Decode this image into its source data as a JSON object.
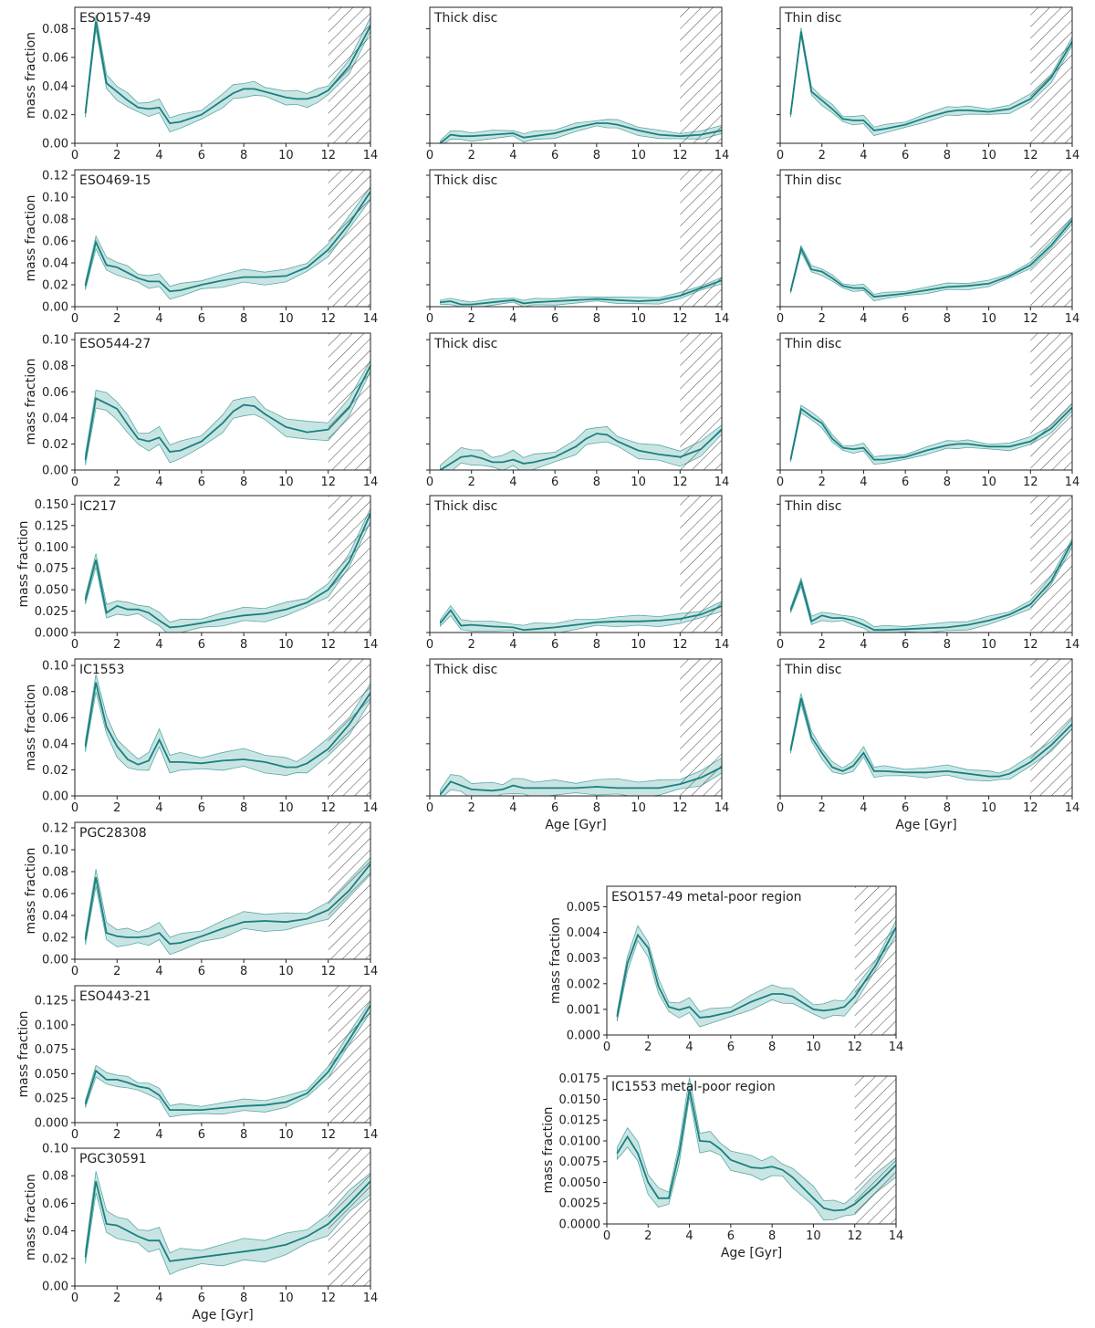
{
  "colors": {
    "line": "#1a8080",
    "band": "#9ccfcc",
    "hatch": "#555555",
    "axis": "#222222"
  },
  "labels": {
    "mass_fraction": "mass fraction",
    "age": "Age [Gyr]"
  },
  "chart_data": [
    {
      "id": "eso157_total",
      "type": "line",
      "title": "ESO157-49",
      "xlim": [
        0,
        14
      ],
      "ylim": [
        0,
        0.095
      ],
      "yticks": [
        0,
        0.02,
        0.04,
        0.06,
        0.08
      ],
      "yfmt": 2,
      "ylabel": "mass fraction",
      "xlabel": "",
      "hatch_from": 12,
      "x": [
        0.5,
        1,
        1.5,
        2,
        2.5,
        3,
        3.5,
        4,
        4.5,
        5,
        6,
        7,
        7.5,
        8,
        8.5,
        9,
        10,
        10.5,
        11,
        11.5,
        12,
        13,
        14
      ],
      "y": [
        0.021,
        0.085,
        0.042,
        0.036,
        0.03,
        0.025,
        0.024,
        0.025,
        0.014,
        0.015,
        0.02,
        0.03,
        0.035,
        0.038,
        0.038,
        0.036,
        0.032,
        0.031,
        0.031,
        0.033,
        0.037,
        0.054,
        0.082
      ],
      "band": 0.005
    },
    {
      "id": "eso157_thick",
      "type": "line",
      "title": "Thick disc",
      "xlim": [
        0,
        14
      ],
      "ylim": [
        0,
        0.095
      ],
      "yticks": [],
      "ylabel": "",
      "xlabel": "",
      "hatch_from": 12,
      "x": [
        0.5,
        1,
        1.5,
        2,
        3,
        4,
        4.5,
        5,
        6,
        7,
        8,
        8.5,
        9,
        10,
        11,
        12,
        13,
        14
      ],
      "y": [
        0.0,
        0.006,
        0.005,
        0.005,
        0.006,
        0.007,
        0.004,
        0.005,
        0.007,
        0.011,
        0.014,
        0.014,
        0.013,
        0.009,
        0.006,
        0.005,
        0.006,
        0.009
      ],
      "band": 0.003
    },
    {
      "id": "eso157_thin",
      "type": "line",
      "title": "Thin disc",
      "xlim": [
        0,
        14
      ],
      "ylim": [
        0,
        0.095
      ],
      "yticks": [],
      "ylabel": "",
      "xlabel": "",
      "hatch_from": 12,
      "x": [
        0.5,
        1,
        1.5,
        2,
        2.5,
        3,
        3.5,
        4,
        4.5,
        5,
        6,
        7,
        8,
        8.5,
        9,
        10,
        11,
        12,
        13,
        14
      ],
      "y": [
        0.02,
        0.078,
        0.036,
        0.03,
        0.024,
        0.017,
        0.016,
        0.016,
        0.009,
        0.01,
        0.013,
        0.018,
        0.022,
        0.023,
        0.023,
        0.022,
        0.024,
        0.031,
        0.046,
        0.071
      ],
      "band": 0.003
    },
    {
      "id": "eso469_total",
      "type": "line",
      "title": "ESO469-15",
      "xlim": [
        0,
        14
      ],
      "ylim": [
        0,
        0.125
      ],
      "yticks": [
        0,
        0.02,
        0.04,
        0.06,
        0.08,
        0.1,
        0.12
      ],
      "yfmt": 2,
      "ylabel": "mass fraction",
      "xlabel": "",
      "hatch_from": 12,
      "x": [
        0.5,
        1,
        1.5,
        2,
        2.5,
        3,
        3.5,
        4,
        4.5,
        5,
        6,
        7,
        8,
        9,
        10,
        11,
        12,
        13,
        14
      ],
      "y": [
        0.019,
        0.059,
        0.038,
        0.036,
        0.031,
        0.026,
        0.023,
        0.023,
        0.014,
        0.015,
        0.02,
        0.024,
        0.027,
        0.027,
        0.028,
        0.036,
        0.052,
        0.076,
        0.105
      ],
      "band": 0.006
    },
    {
      "id": "eso469_thick",
      "type": "line",
      "title": "Thick disc",
      "xlim": [
        0,
        14
      ],
      "ylim": [
        0,
        0.125
      ],
      "yticks": [],
      "ylabel": "",
      "xlabel": "",
      "hatch_from": 12,
      "x": [
        0.5,
        1,
        1.5,
        2,
        3,
        4,
        4.5,
        5,
        6,
        7,
        8,
        9,
        10,
        11,
        12,
        13,
        14
      ],
      "y": [
        0.004,
        0.005,
        0.002,
        0.002,
        0.004,
        0.006,
        0.003,
        0.004,
        0.005,
        0.006,
        0.007,
        0.006,
        0.005,
        0.006,
        0.01,
        0.017,
        0.024
      ],
      "band": 0.003
    },
    {
      "id": "eso469_thin",
      "type": "line",
      "title": "Thin disc",
      "xlim": [
        0,
        14
      ],
      "ylim": [
        0,
        0.125
      ],
      "yticks": [],
      "ylabel": "",
      "xlabel": "",
      "hatch_from": 12,
      "x": [
        0.5,
        1,
        1.5,
        2,
        2.5,
        3,
        3.5,
        4,
        4.5,
        5,
        6,
        7,
        8,
        9,
        10,
        11,
        12,
        13,
        14
      ],
      "y": [
        0.014,
        0.053,
        0.034,
        0.032,
        0.026,
        0.019,
        0.017,
        0.017,
        0.009,
        0.01,
        0.012,
        0.015,
        0.018,
        0.019,
        0.021,
        0.028,
        0.038,
        0.056,
        0.079
      ],
      "band": 0.003
    },
    {
      "id": "eso544_total",
      "type": "line",
      "title": "ESO544-27",
      "xlim": [
        0,
        14
      ],
      "ylim": [
        0,
        0.105
      ],
      "yticks": [
        0,
        0.02,
        0.04,
        0.06,
        0.08,
        0.1
      ],
      "yfmt": 2,
      "ylabel": "mass fraction",
      "xlabel": "",
      "hatch_from": 12,
      "x": [
        0.5,
        1,
        1.5,
        2,
        2.5,
        3,
        3.5,
        4,
        4.5,
        5,
        6,
        7,
        7.5,
        8,
        8.5,
        9,
        10,
        11,
        12,
        13,
        14
      ],
      "y": [
        0.008,
        0.055,
        0.051,
        0.047,
        0.035,
        0.024,
        0.022,
        0.025,
        0.014,
        0.015,
        0.022,
        0.036,
        0.045,
        0.05,
        0.049,
        0.043,
        0.033,
        0.029,
        0.031,
        0.048,
        0.08
      ],
      "band": 0.007
    },
    {
      "id": "eso544_thick",
      "type": "line",
      "title": "Thick disc",
      "xlim": [
        0,
        14
      ],
      "ylim": [
        0,
        0.105
      ],
      "yticks": [],
      "ylabel": "",
      "xlabel": "",
      "hatch_from": 12,
      "x": [
        0.5,
        1,
        1.5,
        2,
        2.5,
        3,
        3.5,
        4,
        4.5,
        5,
        6,
        7,
        7.5,
        8,
        8.5,
        9,
        10,
        11,
        12,
        13,
        14
      ],
      "y": [
        0.0,
        0.005,
        0.01,
        0.011,
        0.009,
        0.006,
        0.006,
        0.008,
        0.005,
        0.006,
        0.01,
        0.018,
        0.024,
        0.028,
        0.027,
        0.022,
        0.015,
        0.012,
        0.01,
        0.016,
        0.031
      ],
      "band": 0.006
    },
    {
      "id": "eso544_thin",
      "type": "line",
      "title": "Thin disc",
      "xlim": [
        0,
        14
      ],
      "ylim": [
        0,
        0.105
      ],
      "yticks": [],
      "ylabel": "",
      "xlabel": "",
      "hatch_from": 12,
      "x": [
        0.5,
        1,
        1.5,
        2,
        2.5,
        3,
        3.5,
        4,
        4.5,
        5,
        6,
        7,
        8,
        8.5,
        9,
        10,
        11,
        12,
        13,
        14
      ],
      "y": [
        0.008,
        0.047,
        0.041,
        0.036,
        0.024,
        0.017,
        0.016,
        0.017,
        0.008,
        0.008,
        0.01,
        0.015,
        0.019,
        0.02,
        0.02,
        0.018,
        0.018,
        0.022,
        0.032,
        0.048
      ],
      "band": 0.003
    },
    {
      "id": "ic217_total",
      "type": "line",
      "title": "IC217",
      "xlim": [
        0,
        14
      ],
      "ylim": [
        0,
        0.16
      ],
      "yticks": [
        0,
        0.025,
        0.05,
        0.075,
        0.1,
        0.125,
        0.15
      ],
      "yfmt": 3,
      "ylabel": "mass fraction",
      "xlabel": "",
      "hatch_from": 12,
      "x": [
        0.5,
        1,
        1.5,
        2,
        2.5,
        3,
        3.5,
        4,
        4.5,
        5,
        6,
        7,
        8,
        9,
        10,
        11,
        12,
        13,
        14
      ],
      "y": [
        0.038,
        0.085,
        0.023,
        0.031,
        0.027,
        0.027,
        0.023,
        0.014,
        0.006,
        0.007,
        0.011,
        0.016,
        0.02,
        0.022,
        0.027,
        0.035,
        0.05,
        0.083,
        0.139
      ],
      "band": 0.008
    },
    {
      "id": "ic217_thick",
      "type": "line",
      "title": "Thick disc",
      "xlim": [
        0,
        14
      ],
      "ylim": [
        0,
        0.16
      ],
      "yticks": [],
      "ylabel": "",
      "xlabel": "",
      "hatch_from": 12,
      "x": [
        0.5,
        1,
        1.5,
        2,
        3,
        4,
        4.5,
        5,
        6,
        7,
        8,
        9,
        10,
        11,
        12,
        13,
        14
      ],
      "y": [
        0.011,
        0.026,
        0.008,
        0.009,
        0.007,
        0.006,
        0.003,
        0.004,
        0.006,
        0.009,
        0.012,
        0.013,
        0.013,
        0.014,
        0.016,
        0.021,
        0.031
      ],
      "band": 0.006
    },
    {
      "id": "ic217_thin",
      "type": "line",
      "title": "Thin disc",
      "xlim": [
        0,
        14
      ],
      "ylim": [
        0,
        0.16
      ],
      "yticks": [],
      "ylabel": "",
      "xlabel": "",
      "hatch_from": 12,
      "x": [
        0.5,
        1,
        1.5,
        2,
        2.5,
        3,
        3.5,
        4,
        4.5,
        5,
        6,
        7,
        8,
        9,
        10,
        11,
        12,
        13,
        14
      ],
      "y": [
        0.026,
        0.059,
        0.013,
        0.02,
        0.017,
        0.017,
        0.014,
        0.009,
        0.003,
        0.003,
        0.004,
        0.005,
        0.006,
        0.009,
        0.014,
        0.021,
        0.033,
        0.06,
        0.106
      ],
      "band": 0.005
    },
    {
      "id": "ic1553_total",
      "type": "line",
      "title": "IC1553",
      "xlim": [
        0,
        14
      ],
      "ylim": [
        0,
        0.105
      ],
      "yticks": [
        0,
        0.02,
        0.04,
        0.06,
        0.08,
        0.1
      ],
      "yfmt": 2,
      "ylabel": "mass fraction",
      "xlabel": "",
      "hatch_from": 12,
      "x": [
        0.5,
        1,
        1.5,
        2,
        2.5,
        3,
        3.5,
        4,
        4.5,
        5,
        6,
        7,
        8,
        9,
        10,
        10.5,
        11,
        12,
        13,
        14
      ],
      "y": [
        0.038,
        0.087,
        0.053,
        0.038,
        0.028,
        0.024,
        0.027,
        0.043,
        0.026,
        0.026,
        0.025,
        0.027,
        0.028,
        0.026,
        0.022,
        0.022,
        0.025,
        0.036,
        0.055,
        0.079
      ],
      "band": 0.007
    },
    {
      "id": "ic1553_thick",
      "type": "line",
      "title": "Thick disc",
      "xlim": [
        0,
        14
      ],
      "ylim": [
        0,
        0.105
      ],
      "yticks": [],
      "ylabel": "",
      "xlabel": "Age [Gyr]",
      "hatch_from": 12,
      "x": [
        0.5,
        1,
        1.5,
        2,
        3,
        3.5,
        4,
        4.5,
        5,
        6,
        7,
        8,
        9,
        10,
        11,
        12,
        13,
        14
      ],
      "y": [
        0.001,
        0.011,
        0.008,
        0.005,
        0.004,
        0.005,
        0.008,
        0.006,
        0.006,
        0.006,
        0.006,
        0.007,
        0.006,
        0.006,
        0.006,
        0.009,
        0.014,
        0.022
      ],
      "band": 0.006
    },
    {
      "id": "ic1553_thin",
      "type": "line",
      "title": "Thin disc",
      "xlim": [
        0,
        14
      ],
      "ylim": [
        0,
        0.105
      ],
      "yticks": [],
      "ylabel": "",
      "xlabel": "Age [Gyr]",
      "hatch_from": 12,
      "x": [
        0.5,
        1,
        1.5,
        2,
        2.5,
        3,
        3.5,
        4,
        4.5,
        5,
        6,
        7,
        8,
        9,
        10,
        10.5,
        11,
        12,
        13,
        14
      ],
      "y": [
        0.035,
        0.075,
        0.045,
        0.033,
        0.022,
        0.019,
        0.023,
        0.033,
        0.019,
        0.019,
        0.018,
        0.018,
        0.019,
        0.017,
        0.015,
        0.015,
        0.017,
        0.026,
        0.039,
        0.055
      ],
      "band": 0.004
    },
    {
      "id": "pgc28308_total",
      "type": "line",
      "title": "PGC28308",
      "xlim": [
        0,
        14
      ],
      "ylim": [
        0,
        0.125
      ],
      "yticks": [
        0,
        0.02,
        0.04,
        0.06,
        0.08,
        0.1,
        0.12
      ],
      "yfmt": 2,
      "ylabel": "mass fraction",
      "xlabel": "",
      "hatch_from": 12,
      "x": [
        0.5,
        1,
        1.5,
        2,
        2.5,
        3,
        3.5,
        4,
        4.5,
        5,
        6,
        7,
        8,
        9,
        10,
        11,
        12,
        13,
        14
      ],
      "y": [
        0.018,
        0.075,
        0.024,
        0.021,
        0.02,
        0.02,
        0.021,
        0.024,
        0.014,
        0.015,
        0.021,
        0.028,
        0.034,
        0.035,
        0.034,
        0.037,
        0.045,
        0.063,
        0.087
      ],
      "band": 0.008
    },
    {
      "id": "eso443_total",
      "type": "line",
      "title": "ESO443-21",
      "xlim": [
        0,
        14
      ],
      "ylim": [
        0,
        0.14
      ],
      "yticks": [
        0,
        0.025,
        0.05,
        0.075,
        0.1,
        0.125
      ],
      "yfmt": 3,
      "ylabel": "mass fraction",
      "xlabel": "",
      "hatch_from": 12,
      "x": [
        0.5,
        1,
        1.5,
        2,
        2.5,
        3,
        3.5,
        4,
        4.5,
        5,
        6,
        7,
        8,
        9,
        10,
        11,
        12,
        13,
        14
      ],
      "y": [
        0.019,
        0.053,
        0.044,
        0.044,
        0.041,
        0.037,
        0.035,
        0.028,
        0.013,
        0.013,
        0.013,
        0.015,
        0.017,
        0.018,
        0.021,
        0.03,
        0.052,
        0.085,
        0.12
      ],
      "band": 0.006
    },
    {
      "id": "pgc30591_total",
      "type": "line",
      "title": "PGC30591",
      "xlim": [
        0,
        14
      ],
      "ylim": [
        0,
        0.1
      ],
      "yticks": [
        0,
        0.02,
        0.04,
        0.06,
        0.08,
        0.1
      ],
      "yfmt": 2,
      "ylabel": "mass fraction",
      "xlabel": "Age [Gyr]",
      "hatch_from": 12,
      "x": [
        0.5,
        1,
        1.5,
        2,
        2.5,
        3,
        3.5,
        4,
        4.5,
        5,
        6,
        7,
        8,
        9,
        10,
        11,
        12,
        13,
        14
      ],
      "y": [
        0.021,
        0.076,
        0.045,
        0.044,
        0.04,
        0.036,
        0.033,
        0.033,
        0.018,
        0.019,
        0.021,
        0.023,
        0.025,
        0.027,
        0.03,
        0.036,
        0.045,
        0.06,
        0.076
      ],
      "band": 0.008
    },
    {
      "id": "eso157_metalpoor",
      "type": "line",
      "title": "ESO157-49 metal-poor region",
      "xlim": [
        0,
        14
      ],
      "ylim": [
        0,
        0.0058
      ],
      "yticks": [
        0,
        0.001,
        0.002,
        0.003,
        0.004,
        0.005
      ],
      "yfmt": 3,
      "ylabel": "mass fraction",
      "xlabel": "",
      "hatch_from": 12,
      "x": [
        0.5,
        1,
        1.5,
        2,
        2.5,
        3,
        3.5,
        4,
        4.5,
        5,
        6,
        7,
        8,
        8.5,
        9,
        10,
        10.5,
        11,
        11.5,
        12,
        13,
        14
      ],
      "y": [
        0.00072,
        0.0028,
        0.0039,
        0.0034,
        0.0019,
        0.0011,
        0.00098,
        0.0011,
        0.00068,
        0.00072,
        0.0009,
        0.0013,
        0.0016,
        0.0016,
        0.0015,
        0.001,
        0.00095,
        0.001,
        0.0011,
        0.0015,
        0.0027,
        0.0042
      ],
      "band": 0.0003
    },
    {
      "id": "ic1553_metalpoor",
      "type": "line",
      "title": "IC1553 metal-poor region",
      "xlim": [
        0,
        14
      ],
      "ylim": [
        0,
        0.0178
      ],
      "yticks": [
        0,
        0.0025,
        0.005,
        0.0075,
        0.01,
        0.0125,
        0.015,
        0.0175
      ],
      "yfmt": 4,
      "ylabel": "mass fraction",
      "xlabel": "Age [Gyr]",
      "hatch_from": 12,
      "x": [
        0.5,
        1,
        1.5,
        2,
        2.5,
        3,
        3.5,
        4,
        4.5,
        5,
        5.5,
        6,
        7,
        7.5,
        8,
        8.5,
        9,
        10,
        10.5,
        11,
        11.5,
        12,
        13,
        14
      ],
      "y": [
        0.0085,
        0.0105,
        0.0085,
        0.005,
        0.0031,
        0.0031,
        0.0085,
        0.0162,
        0.01,
        0.0099,
        0.009,
        0.0077,
        0.0068,
        0.0067,
        0.0069,
        0.0065,
        0.0056,
        0.0031,
        0.0019,
        0.0016,
        0.0017,
        0.0024,
        0.0046,
        0.0071
      ],
      "band": 0.0012
    }
  ]
}
